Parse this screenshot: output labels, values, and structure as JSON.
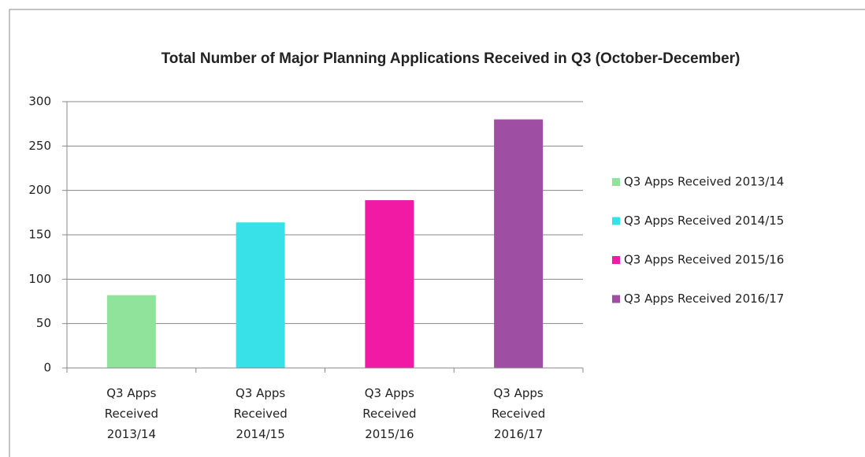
{
  "chart_data": {
    "type": "bar",
    "title": "Total Number of Major Planning Applications  Received in Q3 (October-December)",
    "categories": [
      "Q3 Apps Received 2013/14",
      "Q3 Apps Received 2014/15",
      "Q3 Apps Received 2015/16",
      "Q3 Apps Received 2016/17"
    ],
    "values": [
      82,
      164,
      189,
      280
    ],
    "colors": [
      "#8fe39a",
      "#38e0e8",
      "#f01aa5",
      "#9e4fa3"
    ],
    "ylim": [
      0,
      300
    ],
    "yticks": [
      0,
      50,
      100,
      150,
      200,
      250,
      300
    ],
    "grid": true,
    "legend": "right"
  }
}
